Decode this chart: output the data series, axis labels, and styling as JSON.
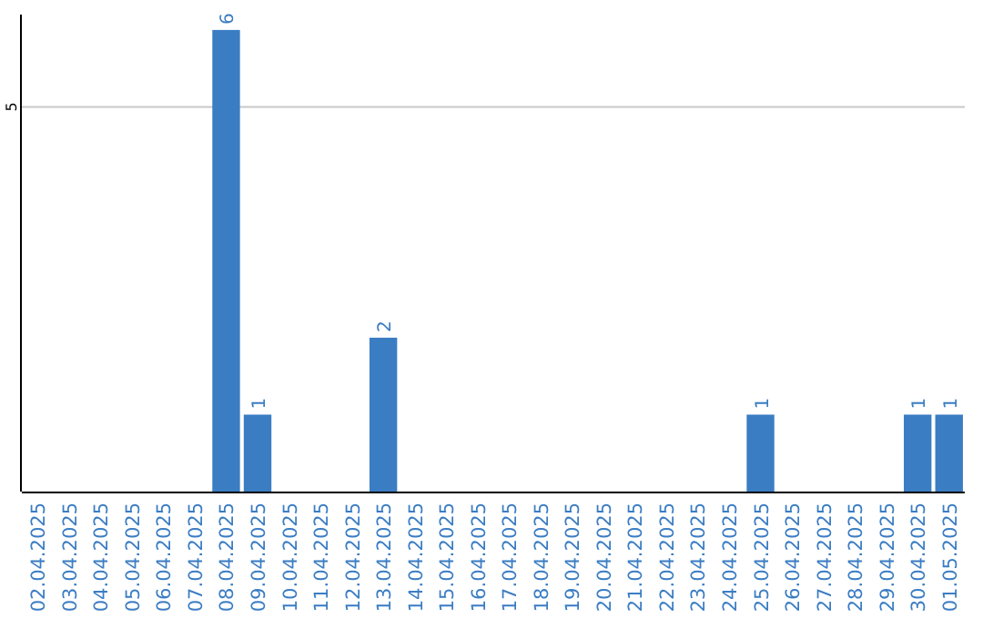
{
  "chart_data": {
    "type": "bar",
    "categories": [
      "02.04.2025",
      "03.04.2025",
      "04.04.2025",
      "05.04.2025",
      "06.04.2025",
      "07.04.2025",
      "08.04.2025",
      "09.04.2025",
      "10.04.2025",
      "11.04.2025",
      "12.04.2025",
      "13.04.2025",
      "14.04.2025",
      "15.04.2025",
      "16.04.2025",
      "17.04.2025",
      "18.04.2025",
      "19.04.2025",
      "20.04.2025",
      "21.04.2025",
      "22.04.2025",
      "23.04.2025",
      "24.04.2025",
      "25.04.2025",
      "26.04.2025",
      "27.04.2025",
      "28.04.2025",
      "29.04.2025",
      "30.04.2025",
      "01.05.2025"
    ],
    "values": [
      0,
      0,
      0,
      0,
      0,
      0,
      6,
      1,
      0,
      0,
      0,
      2,
      0,
      0,
      0,
      0,
      0,
      0,
      0,
      0,
      0,
      0,
      0,
      1,
      0,
      0,
      0,
      0,
      1,
      1
    ],
    "value_labels": [
      null,
      null,
      null,
      null,
      null,
      null,
      "6",
      "1",
      null,
      null,
      null,
      "2",
      null,
      null,
      null,
      null,
      null,
      null,
      null,
      null,
      null,
      null,
      null,
      "1",
      null,
      null,
      null,
      null,
      "1",
      "1"
    ],
    "color": "#3b7dc3",
    "ylim": [
      0,
      6.2
    ],
    "yticks": [
      5
    ],
    "grid": "y"
  }
}
